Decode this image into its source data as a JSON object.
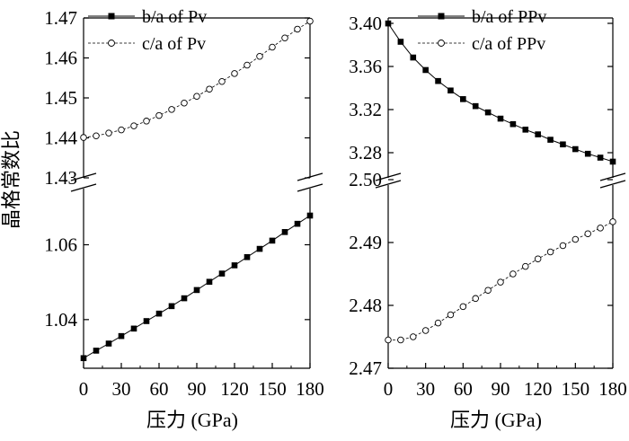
{
  "figure": {
    "ylabel": "晶格常数比"
  },
  "chart_data": [
    {
      "type": "line",
      "panel": "left",
      "xlabel": "压力 (GPa)",
      "x_ticks": [
        "0",
        "30",
        "60",
        "90",
        "120",
        "150",
        "180"
      ],
      "xlim": [
        0,
        180
      ],
      "broken_y_axis": true,
      "upper": {
        "ylim": [
          1.43,
          1.47
        ],
        "y_ticks": [
          "1.43",
          "1.44",
          "1.45",
          "1.46",
          "1.47"
        ],
        "series": [
          {
            "name": "c/a of Pv",
            "marker": "open-circle",
            "line": "dashed",
            "x": [
              0,
              10,
              20,
              30,
              40,
              50,
              60,
              70,
              80,
              90,
              100,
              110,
              120,
              130,
              140,
              150,
              160,
              170,
              180
            ],
            "values": [
              1.4401,
              1.4405,
              1.4412,
              1.442,
              1.443,
              1.4442,
              1.4456,
              1.4471,
              1.4487,
              1.4504,
              1.4522,
              1.4541,
              1.4561,
              1.4582,
              1.4604,
              1.4627,
              1.465,
              1.4672,
              1.4692
            ]
          }
        ]
      },
      "lower": {
        "ylim": [
          1.027,
          1.075
        ],
        "y_ticks": [
          "1.04",
          "1.06"
        ],
        "series": [
          {
            "name": "b/a of Pv",
            "marker": "filled-square",
            "line": "solid",
            "x": [
              0,
              10,
              20,
              30,
              40,
              50,
              60,
              70,
              80,
              90,
              100,
              110,
              120,
              130,
              140,
              150,
              160,
              170,
              180
            ],
            "values": [
              1.0297,
              1.0317,
              1.0336,
              1.0356,
              1.0376,
              1.0396,
              1.0416,
              1.0436,
              1.0457,
              1.0479,
              1.0501,
              1.0523,
              1.0545,
              1.0567,
              1.0589,
              1.0611,
              1.0634,
              1.0656,
              1.0678
            ]
          }
        ]
      }
    },
    {
      "type": "line",
      "panel": "right",
      "xlabel": "压力 (GPa)",
      "x_ticks": [
        "0",
        "30",
        "60",
        "90",
        "120",
        "150",
        "180"
      ],
      "xlim": [
        0,
        180
      ],
      "broken_y_axis": true,
      "upper": {
        "ylim": [
          3.255,
          3.405
        ],
        "y_ticks": [
          "3.28",
          "3.32",
          "3.36",
          "3.40"
        ],
        "series": [
          {
            "name": "b/a of PPv",
            "marker": "filled-square",
            "line": "solid",
            "x": [
              0,
              10,
              20,
              30,
              40,
              50,
              60,
              70,
              80,
              90,
              100,
              110,
              120,
              130,
              140,
              150,
              160,
              170,
              180
            ],
            "values": [
              3.3999,
              3.3829,
              3.3683,
              3.3567,
              3.3465,
              3.3377,
              3.3297,
              3.3232,
              3.3174,
              3.3116,
              3.3065,
              3.3014,
              3.297,
              3.292,
              3.2877,
              3.2833,
              3.279,
              3.2754,
              3.2717
            ]
          }
        ]
      },
      "lower": {
        "ylim": [
          2.47,
          2.5
        ],
        "y_ticks": [
          "2.47",
          "2.48",
          "2.49",
          "2.50"
        ],
        "series": [
          {
            "name": "c/a of PPv",
            "marker": "open-circle",
            "line": "dashed",
            "x": [
              0,
              10,
              20,
              30,
              40,
              50,
              60,
              70,
              80,
              90,
              100,
              110,
              120,
              130,
              140,
              150,
              160,
              170,
              180
            ],
            "values": [
              2.4745,
              2.4745,
              2.475,
              2.476,
              2.4772,
              2.4785,
              2.4798,
              2.4811,
              2.4824,
              2.4837,
              2.485,
              2.4862,
              2.4874,
              2.4885,
              2.4895,
              2.4905,
              2.4914,
              2.4923,
              2.4933
            ]
          }
        ]
      }
    }
  ]
}
